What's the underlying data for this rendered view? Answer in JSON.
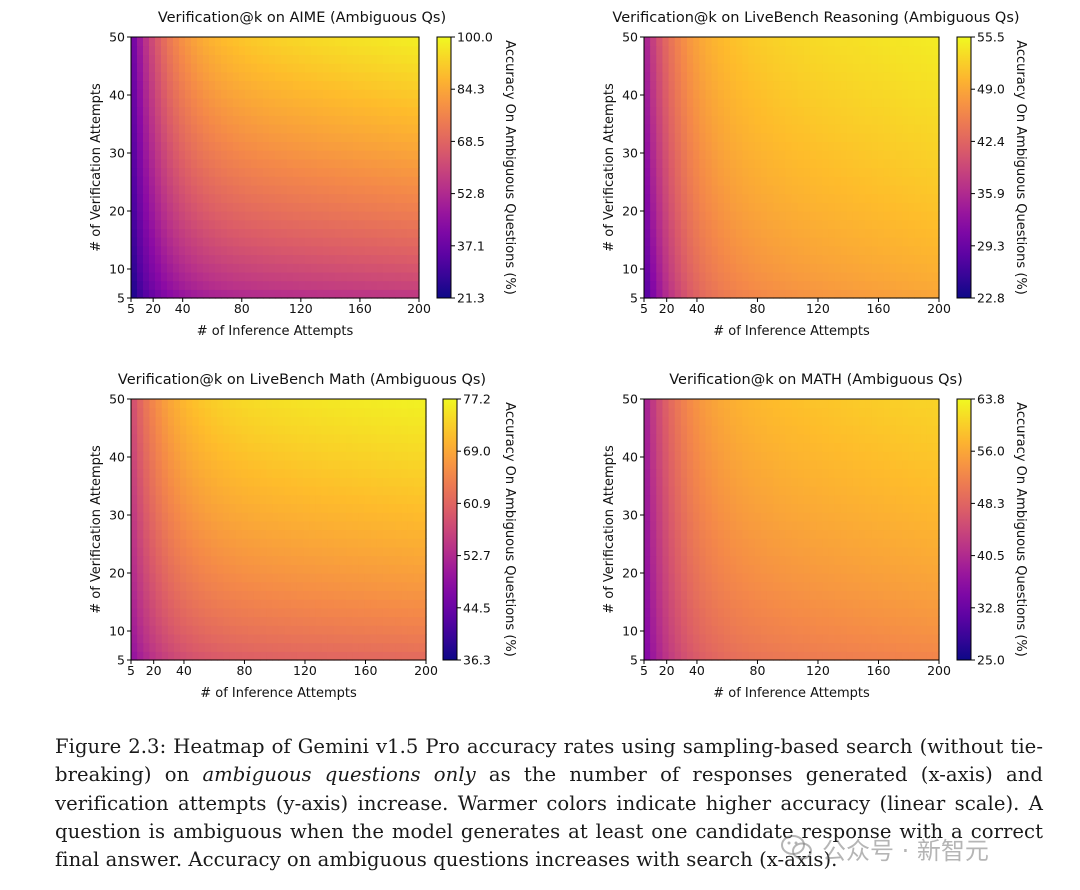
{
  "chart_data": [
    {
      "type": "heatmap",
      "title": "Verification@k on AIME (Ambiguous Qs)",
      "xlabel": "# of Inference Attempts",
      "ylabel": "# of Verification Attempts",
      "xticks": [
        5,
        20,
        40,
        80,
        120,
        160,
        200
      ],
      "yticks": [
        5,
        10,
        20,
        30,
        40,
        50
      ],
      "xlim": [
        5,
        200
      ],
      "ylim": [
        5,
        50
      ],
      "colorbar_label": "Accuracy On Ambiguous Questions (%)",
      "colorbar_ticks": [
        "100.0",
        "84.3",
        "68.5",
        "52.8",
        "37.1",
        "21.3"
      ],
      "vmin": 21.3,
      "vmax": 100.0,
      "colormap": "plasma",
      "corner_values": {
        "x5_y5": 21.3,
        "x200_y5": 55.0,
        "x5_y50": 35.0,
        "x200_y50": 98.0
      }
    },
    {
      "type": "heatmap",
      "title": "Verification@k on LiveBench Reasoning (Ambiguous Qs)",
      "xlabel": "# of Inference Attempts",
      "ylabel": "# of Verification Attempts",
      "xticks": [
        5,
        20,
        40,
        80,
        120,
        160,
        200
      ],
      "yticks": [
        5,
        10,
        20,
        30,
        40,
        50
      ],
      "xlim": [
        5,
        200
      ],
      "ylim": [
        5,
        50
      ],
      "colorbar_label": "Accuracy On Ambiguous Questions (%)",
      "colorbar_ticks": [
        "55.5",
        "49.0",
        "42.4",
        "35.9",
        "29.3",
        "22.8"
      ],
      "vmin": 22.8,
      "vmax": 55.5,
      "colormap": "plasma",
      "corner_values": {
        "x5_y5": 26.0,
        "x200_y5": 48.5,
        "x5_y50": 34.0,
        "x200_y50": 54.5
      }
    },
    {
      "type": "heatmap",
      "title": "Verification@k on LiveBench Math (Ambiguous Qs)",
      "xlabel": "# of Inference Attempts",
      "ylabel": "# of Verification Attempts",
      "xticks": [
        5,
        20,
        40,
        80,
        120,
        160,
        200
      ],
      "yticks": [
        5,
        10,
        20,
        30,
        40,
        50
      ],
      "xlim": [
        5,
        200
      ],
      "ylim": [
        5,
        50
      ],
      "colorbar_label": "Accuracy On Ambiguous Questions (%)",
      "colorbar_ticks": [
        "77.2",
        "69.0",
        "60.9",
        "52.7",
        "44.5",
        "36.3"
      ],
      "vmin": 36.3,
      "vmax": 77.2,
      "colormap": "plasma",
      "corner_values": {
        "x5_y5": 48.0,
        "x200_y5": 61.0,
        "x5_y50": 57.0,
        "x200_y50": 76.5
      }
    },
    {
      "type": "heatmap",
      "title": "Verification@k on MATH (Ambiguous Qs)",
      "xlabel": "# of Inference Attempts",
      "ylabel": "# of Verification Attempts",
      "xticks": [
        5,
        20,
        40,
        80,
        120,
        160,
        200
      ],
      "yticks": [
        5,
        10,
        20,
        30,
        40,
        50
      ],
      "xlim": [
        5,
        200
      ],
      "ylim": [
        5,
        50
      ],
      "colorbar_label": "Accuracy On Ambiguous Questions (%)",
      "colorbar_ticks": [
        "63.8",
        "56.0",
        "48.3",
        "40.5",
        "32.8",
        "25.0"
      ],
      "vmin": 25.0,
      "vmax": 63.8,
      "colormap": "plasma",
      "corner_values": {
        "x5_y5": 34.0,
        "x200_y5": 52.0,
        "x5_y50": 38.0,
        "x200_y50": 60.5
      }
    }
  ],
  "caption": {
    "prefix": "Figure 2.3: Heatmap of Gemini v1.5 Pro accuracy rates using sampling-based search (without tie-breaking) on ",
    "emphasis": "ambiguous questions only",
    "suffix": " as the number of responses generated (x-axis) and verification attempts (y-axis) increase.  Warmer colors indicate higher accuracy (linear scale).  A question is ambiguous when the model generates at least one candidate response with a correct final answer. Accuracy on ambiguous questions increases with search (x-axis)."
  },
  "watermark": {
    "text": "公众号 · 新智元",
    "icon": "wechat-logo-icon"
  }
}
